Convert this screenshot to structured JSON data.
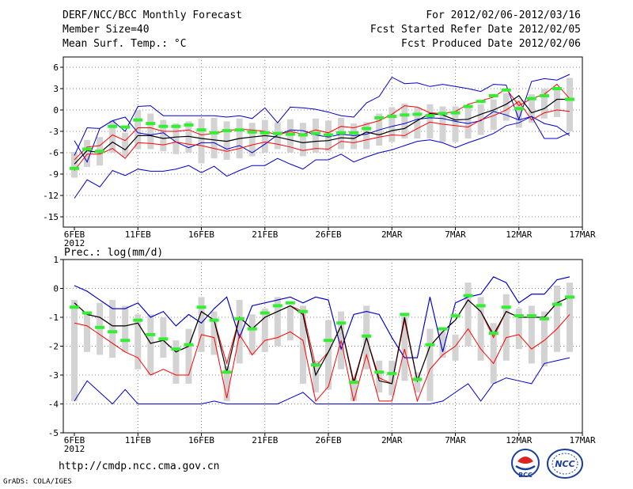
{
  "header": {
    "title": "DERF/NCC/BCC Monthly Forecast",
    "member_size": "Member Size=40",
    "variable": "Mean Surf. Temp.: °C",
    "period": "For 2012/02/06-2012/03/16",
    "refer_date": "Fcst Started Refer Date 2012/02/05",
    "produced_date": "Fcst Produced Date 2012/02/06"
  },
  "colors": {
    "envelope": "#0000cc",
    "spread": "#ff0000",
    "mean": "#000000",
    "box": "#d3d3d3",
    "observed": "#33ee33",
    "grid": "#888888"
  },
  "chart_data": [
    {
      "type": "line",
      "title": "Mean Surf. Temp.: °C",
      "x_tick_labels": [
        "6FEB",
        "11FEB",
        "16FEB",
        "21FEB",
        "26FEB",
        "2MAR",
        "7MAR",
        "12MAR",
        "17MAR"
      ],
      "x_year_label": "2012",
      "y_ticks": [
        6,
        3,
        0,
        -3,
        -6,
        -9,
        -12,
        -15
      ],
      "ylim": [
        -16.5,
        6.5
      ],
      "days": 40,
      "series": [
        {
          "name": "max",
          "values": [
            -12.4,
            -9.8,
            -10.8,
            -8.5,
            -9.2,
            -8.3,
            -8.6,
            -8.6,
            -8.3,
            -7.8,
            -8.8,
            -7.9,
            -9.3,
            -8.5,
            -7.8,
            -7.8,
            -6.8,
            -7.6,
            -8.3,
            -7.0,
            -7.0,
            -6.2,
            -7.3,
            -6.6,
            -6.0,
            -5.6,
            -5.0,
            -4.4,
            -4.2,
            -4.6,
            -5.3,
            -4.6,
            -4.0,
            -3.3,
            -2.2,
            -1.8,
            -0.9,
            -4.0,
            -4.0,
            -3.2
          ]
        },
        {
          "name": "upper",
          "values": [
            -6.4,
            -2.5,
            -2.6,
            -1.5,
            -3.0,
            0.5,
            0.6,
            -0.8,
            -0.8,
            -0.8,
            -0.8,
            -0.8,
            -1.0,
            -0.8,
            -1.2,
            0.3,
            -1.8,
            0.4,
            0.3,
            0.1,
            -0.3,
            -0.8,
            -1.0,
            1.0,
            1.9,
            4.6,
            3.7,
            3.8,
            3.3,
            3.6,
            3.3,
            3.0,
            2.6,
            3.6,
            3.5,
            -1.3,
            4.0,
            4.4,
            4.2,
            5.0
          ]
        },
        {
          "name": "red_upper",
          "values": [
            -7.0,
            -5.2,
            -5.0,
            -3.5,
            -4.3,
            -2.5,
            -2.5,
            -3.0,
            -3.0,
            -2.8,
            -3.5,
            -3.3,
            -2.9,
            -2.7,
            -2.8,
            -3.0,
            -3.5,
            -3.0,
            -3.4,
            -2.8,
            -3.2,
            -2.3,
            -2.5,
            -2.0,
            -1.5,
            -0.6,
            0.6,
            0.4,
            -0.4,
            -0.5,
            -0.2,
            0.8,
            1.3,
            1.8,
            3.0,
            0.6,
            1.6,
            2.2,
            3.6,
            1.6
          ]
        },
        {
          "name": "mean",
          "values": [
            -7.6,
            -5.7,
            -6.0,
            -4.5,
            -5.6,
            -3.6,
            -3.6,
            -4.0,
            -3.8,
            -3.7,
            -4.0,
            -4.2,
            -4.4,
            -4.0,
            -3.8,
            -3.6,
            -3.8,
            -4.2,
            -4.6,
            -4.4,
            -4.3,
            -3.9,
            -4.0,
            -3.1,
            -3.5,
            -2.9,
            -2.6,
            -1.5,
            -0.5,
            -0.7,
            -1.4,
            -1.3,
            -0.6,
            0.0,
            0.8,
            2.0,
            -0.4,
            0.2,
            1.5,
            1.5
          ]
        },
        {
          "name": "red_lower",
          "values": [
            -8.5,
            -6.2,
            -6.2,
            -5.4,
            -6.8,
            -4.6,
            -4.7,
            -4.9,
            -4.5,
            -4.8,
            -5.0,
            -5.4,
            -5.8,
            -5.4,
            -4.9,
            -4.5,
            -4.8,
            -5.2,
            -5.7,
            -5.4,
            -5.5,
            -4.4,
            -4.6,
            -4.2,
            -3.8,
            -3.5,
            -3.6,
            -2.6,
            -1.7,
            -2.0,
            -2.2,
            -2.4,
            -1.4,
            -0.8,
            0.0,
            1.2,
            -1.4,
            -0.4,
            0.0,
            -0.2
          ]
        },
        {
          "name": "min",
          "values": [
            -4.3,
            -7.3,
            -2.6,
            -1.5,
            -1.0,
            -3.2,
            -3.5,
            -3.2,
            -4.5,
            -5.3,
            -4.6,
            -4.6,
            -5.5,
            -5.0,
            -6.0,
            -4.8,
            -3.5,
            -2.8,
            -2.9,
            -3.5,
            -3.8,
            -3.4,
            -3.6,
            -3.4,
            -2.8,
            -2.3,
            -1.9,
            -1.3,
            -1.1,
            -1.2,
            -1.6,
            -1.9,
            -1.5,
            -0.2,
            -0.7,
            -1.4,
            -0.9,
            -1.9,
            -2.3,
            -3.6
          ]
        },
        {
          "name": "observed",
          "values": [
            -8.2,
            -5.5,
            -5.8,
            -2.3,
            -2.4,
            -1.4,
            -1.9,
            -2.3,
            -2.3,
            -2.1,
            -2.8,
            -3.2,
            -2.9,
            -2.8,
            -3.1,
            -3.2,
            -3.3,
            -3.4,
            -3.5,
            -3.3,
            -3.5,
            -3.2,
            -3.2,
            -2.6,
            -1.1,
            -0.9,
            -0.7,
            -0.6,
            -0.8,
            -0.5,
            -0.4,
            0.5,
            1.2,
            2.0,
            2.8,
            0.2,
            1.6,
            2.0,
            3.0,
            1.5
          ]
        }
      ],
      "boxes": [
        [
          -9.5,
          -5.9
        ],
        [
          -8.0,
          -4.2
        ],
        [
          -7.8,
          -3.8
        ],
        [
          -6.0,
          -1.5
        ],
        [
          -6.5,
          -3.2
        ],
        [
          -5.5,
          0.0
        ],
        [
          -5.5,
          -0.5
        ],
        [
          -5.8,
          -1.4
        ],
        [
          -6.2,
          -1.9
        ],
        [
          -6.0,
          -1.6
        ],
        [
          -7.5,
          -1.2
        ],
        [
          -6.8,
          -1.1
        ],
        [
          -7.0,
          -1.6
        ],
        [
          -6.8,
          -1.2
        ],
        [
          -6.5,
          -1.8
        ],
        [
          -6.0,
          -1.4
        ],
        [
          -5.5,
          -1.8
        ],
        [
          -6.0,
          -1.3
        ],
        [
          -6.5,
          -1.8
        ],
        [
          -6.0,
          -1.2
        ],
        [
          -5.8,
          -1.5
        ],
        [
          -5.5,
          -1.1
        ],
        [
          -5.5,
          -1.9
        ],
        [
          -5.5,
          -1.7
        ],
        [
          -5.0,
          -0.5
        ],
        [
          -4.5,
          0.4
        ],
        [
          -4.0,
          0.9
        ],
        [
          -4.0,
          0.4
        ],
        [
          -4.0,
          0.8
        ],
        [
          -4.5,
          0.5
        ],
        [
          -4.5,
          0.5
        ],
        [
          -4.0,
          0.5
        ],
        [
          -3.5,
          0.8
        ],
        [
          -2.8,
          1.5
        ],
        [
          -1.5,
          2.4
        ],
        [
          -2.5,
          1.4
        ],
        [
          -1.8,
          2.2
        ],
        [
          -1.2,
          3.0
        ],
        [
          -1.0,
          3.0
        ],
        [
          -3.0,
          4.5
        ]
      ]
    },
    {
      "type": "line",
      "title": "Prec.: log(mm/d)",
      "x_tick_labels": [
        "6FEB",
        "11FEB",
        "16FEB",
        "21FEB",
        "26FEB",
        "2MAR",
        "7MAR",
        "12MAR",
        "17MAR"
      ],
      "x_year_label": "2012",
      "y_ticks": [
        1,
        0,
        -1,
        -2,
        -3,
        -4,
        -5
      ],
      "ylim": [
        -5,
        1
      ],
      "days": 40,
      "series": [
        {
          "name": "max",
          "values": [
            0.1,
            -0.1,
            -0.4,
            -0.7,
            -0.7,
            -0.5,
            -1.0,
            -0.8,
            -1.3,
            -0.9,
            -1.2,
            -0.7,
            -0.3,
            -1.7,
            -0.6,
            -0.5,
            -0.4,
            -0.3,
            -0.5,
            -0.3,
            -0.4,
            -2.1,
            -0.9,
            -0.8,
            -0.9,
            -1.7,
            -2.4,
            -2.4,
            -0.3,
            -2.2,
            -0.5,
            -0.3,
            -0.2,
            0.4,
            0.2,
            -0.5,
            -0.2,
            -0.2,
            0.3,
            0.4
          ]
        },
        {
          "name": "max_ext",
          "values": [
            null,
            null,
            null,
            null,
            null,
            null,
            null,
            null,
            null,
            null,
            null,
            null,
            null,
            null,
            null,
            null,
            null,
            null,
            null,
            null,
            null,
            null,
            null,
            null,
            null,
            null,
            null,
            null,
            null,
            null,
            null,
            null,
            null,
            null,
            null,
            null,
            null,
            null,
            null,
            null
          ]
        },
        {
          "name": "red_upper",
          "values": [
            -0.5,
            -0.9,
            -1.0,
            -1.3,
            -1.3,
            -1.2,
            -1.9,
            -1.8,
            -2.2,
            -2.0,
            -0.8,
            -1.1,
            -2.6,
            -1.0,
            -1.4,
            -1.0,
            -0.8,
            -0.6,
            -0.8,
            -2.7,
            -2.2,
            -1.3,
            -3.2,
            -1.7,
            -3.1,
            -3.3,
            -1.1,
            -3.2,
            -2.0,
            -1.5,
            -1.1,
            -0.4,
            -0.8,
            -1.7,
            -0.8,
            -1.0,
            -1.0,
            -1.0,
            -0.5,
            -0.3
          ]
        },
        {
          "name": "mean",
          "values": [
            -0.5,
            -0.9,
            -1.0,
            -1.3,
            -1.3,
            -1.2,
            -1.9,
            -1.8,
            -2.2,
            -2.0,
            -0.8,
            -1.1,
            -2.9,
            -1.0,
            -1.4,
            -1.0,
            -0.8,
            -0.6,
            -0.9,
            -3.0,
            -2.2,
            -1.3,
            -3.3,
            -1.7,
            -3.2,
            -3.3,
            -1.0,
            -3.2,
            -2.0,
            -1.5,
            -1.1,
            -0.4,
            -0.8,
            -1.6,
            -0.8,
            -1.0,
            -1.0,
            -1.0,
            -0.5,
            -0.3
          ]
        },
        {
          "name": "red_lower",
          "values": [
            -1.2,
            -1.3,
            -1.6,
            -1.9,
            -2.2,
            -2.4,
            -3.0,
            -2.8,
            -3.0,
            -3.0,
            -1.6,
            -1.7,
            -3.8,
            -1.6,
            -2.3,
            -1.8,
            -1.7,
            -1.5,
            -1.8,
            -3.9,
            -3.4,
            -1.8,
            -3.9,
            -2.3,
            -3.9,
            -3.9,
            -2.1,
            -3.9,
            -2.8,
            -2.3,
            -2.0,
            -1.4,
            -2.1,
            -2.6,
            -1.7,
            -1.6,
            -2.1,
            -1.8,
            -1.4,
            -0.9
          ]
        },
        {
          "name": "min",
          "values": [
            -3.9,
            -3.2,
            -3.6,
            -4.0,
            -3.5,
            -4.0,
            -4.0,
            -4.0,
            -4.0,
            -4.0,
            -4.0,
            -3.9,
            -4.0,
            -4.0,
            -4.0,
            -4.0,
            -4.0,
            -3.8,
            -3.6,
            -4.0,
            -4.0,
            -4.0,
            -4.0,
            -4.0,
            -4.0,
            -4.0,
            -4.0,
            -4.0,
            -4.0,
            -3.9,
            -3.6,
            -3.3,
            -3.9,
            -3.3,
            -3.1,
            -3.2,
            -3.3,
            -2.6,
            -2.5,
            -2.4
          ]
        },
        {
          "name": "observed",
          "values": [
            -0.65,
            -0.85,
            -1.35,
            -1.5,
            -1.8,
            -1.1,
            -1.6,
            -1.75,
            -2.1,
            -1.95,
            -0.65,
            -1.1,
            -2.9,
            -1.05,
            -1.4,
            -0.85,
            -0.6,
            -0.5,
            -0.8,
            -2.65,
            -1.8,
            -1.2,
            -3.25,
            -1.65,
            -2.9,
            -2.95,
            -0.9,
            -3.15,
            -1.95,
            -1.4,
            -0.95,
            -0.25,
            -0.6,
            -1.55,
            -0.65,
            -0.95,
            -0.95,
            -1.05,
            -0.55,
            -0.3
          ]
        }
      ],
      "boxes": [
        [
          -3.9,
          -0.4
        ],
        [
          -2.2,
          -0.8
        ],
        [
          -2.3,
          -0.5
        ],
        [
          -2.4,
          -0.4
        ],
        [
          -2.2,
          -0.6
        ],
        [
          -2.8,
          -0.9
        ],
        [
          -3.0,
          -0.9
        ],
        [
          -2.4,
          -1.0
        ],
        [
          -3.3,
          -1.8
        ],
        [
          -3.3,
          -1.4
        ],
        [
          -2.2,
          -0.3
        ],
        [
          -2.3,
          -0.8
        ],
        [
          -3.9,
          -2.7
        ],
        [
          -2.6,
          -0.4
        ],
        [
          -2.3,
          -0.9
        ],
        [
          -2.2,
          -0.7
        ],
        [
          -2.0,
          -0.3
        ],
        [
          -1.8,
          -0.6
        ],
        [
          -3.3,
          -0.6
        ],
        [
          -3.6,
          -2.5
        ],
        [
          -3.5,
          -1.1
        ],
        [
          -2.8,
          -0.8
        ],
        [
          -3.9,
          -3.1
        ],
        [
          -2.8,
          -0.6
        ],
        [
          -3.6,
          -2.5
        ],
        [
          -3.7,
          -2.5
        ],
        [
          -3.2,
          -0.9
        ],
        [
          -3.6,
          -2.9
        ],
        [
          -3.9,
          -1.4
        ],
        [
          -2.4,
          -1.5
        ],
        [
          -2.5,
          -1.6
        ],
        [
          -2.0,
          0.2
        ],
        [
          -2.5,
          -0.3
        ],
        [
          -3.3,
          -1.2
        ],
        [
          -2.5,
          -0.2
        ],
        [
          -2.1,
          -0.7
        ],
        [
          -2.6,
          -0.6
        ],
        [
          -2.7,
          -0.8
        ],
        [
          -2.2,
          0.1
        ],
        [
          -2.2,
          0.2
        ]
      ]
    }
  ],
  "footer": {
    "url": "http://cmdp.ncc.cma.gov.cn",
    "credit": "GrADS: COLA/IGES",
    "logo_bcc": "BCC",
    "logo_ncc": "NCC"
  }
}
